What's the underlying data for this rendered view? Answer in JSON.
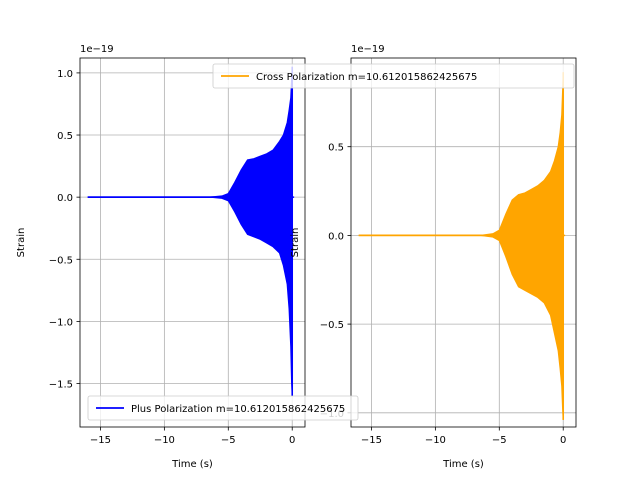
{
  "chart_data": [
    {
      "type": "line",
      "ylabel": "Strain",
      "xlabel": "Time (s)",
      "y_offset_label": "1e−19",
      "y_scale": 1e-19,
      "series": [
        {
          "name": "Plus Polarization m=10.612015862425675",
          "color": "#0000ff"
        }
      ],
      "xlim": [
        -16.6,
        1.0
      ],
      "ylim": [
        -1.85,
        1.12
      ],
      "xticks": [
        -15,
        -10,
        -5,
        0
      ],
      "xtick_labels": [
        "−15",
        "−10",
        "−5",
        "0"
      ],
      "yticks": [
        1.0,
        0.5,
        0.0,
        -0.5,
        -1.0,
        -1.5
      ],
      "ytick_labels": [
        "1.0",
        "0.5",
        "0.0",
        "−0.5",
        "−1.0",
        "−1.5"
      ],
      "envelope": {
        "t": [
          -16.0,
          -6.5,
          -6.0,
          -5.5,
          -5.0,
          -4.5,
          -4.0,
          -3.5,
          -3.0,
          -2.5,
          -2.0,
          -1.5,
          -1.0,
          -0.7,
          -0.4,
          -0.25,
          -0.12,
          -0.05,
          0.0
        ],
        "upper": [
          0.0,
          0.0,
          0.005,
          0.01,
          0.03,
          0.12,
          0.22,
          0.3,
          0.31,
          0.33,
          0.35,
          0.38,
          0.45,
          0.5,
          0.6,
          0.7,
          0.8,
          0.95,
          1.05
        ],
        "lower": [
          0.0,
          0.0,
          -0.005,
          -0.01,
          -0.03,
          -0.12,
          -0.22,
          -0.3,
          -0.32,
          -0.34,
          -0.37,
          -0.4,
          -0.45,
          -0.55,
          -0.7,
          -0.9,
          -1.2,
          -1.5,
          -1.6
        ]
      },
      "legend_loc": "lower left",
      "grid": true
    },
    {
      "type": "line",
      "ylabel": "Strain",
      "xlabel": "Time (s)",
      "y_offset_label": "1e−19",
      "y_scale": 1e-19,
      "series": [
        {
          "name": "Cross Polarization m=10.612015862425675",
          "color": "#ffa500"
        }
      ],
      "xlim": [
        -16.6,
        1.0
      ],
      "ylim": [
        -1.08,
        1.0
      ],
      "xticks": [
        -15,
        -10,
        -5,
        0
      ],
      "xtick_labels": [
        "−15",
        "−10",
        "−5",
        "0"
      ],
      "yticks": [
        0.5,
        0.0,
        -0.5,
        -1.0
      ],
      "ytick_labels": [
        "0.5",
        "0.0",
        "−0.5",
        "−1.0"
      ],
      "envelope": {
        "t": [
          -16.0,
          -6.5,
          -6.0,
          -5.5,
          -5.0,
          -4.5,
          -4.0,
          -3.5,
          -3.0,
          -2.5,
          -2.0,
          -1.5,
          -1.0,
          -0.7,
          -0.4,
          -0.25,
          -0.12,
          -0.05,
          0.0
        ],
        "upper": [
          0.0,
          0.0,
          0.005,
          0.01,
          0.03,
          0.12,
          0.2,
          0.23,
          0.24,
          0.26,
          0.28,
          0.31,
          0.36,
          0.42,
          0.5,
          0.58,
          0.68,
          0.82,
          0.92
        ],
        "lower": [
          0.0,
          0.0,
          -0.005,
          -0.01,
          -0.03,
          -0.12,
          -0.22,
          -0.29,
          -0.31,
          -0.33,
          -0.35,
          -0.38,
          -0.45,
          -0.55,
          -0.65,
          -0.75,
          -0.85,
          -0.98,
          -1.04
        ]
      },
      "legend_loc": "upper center",
      "grid": true
    }
  ]
}
